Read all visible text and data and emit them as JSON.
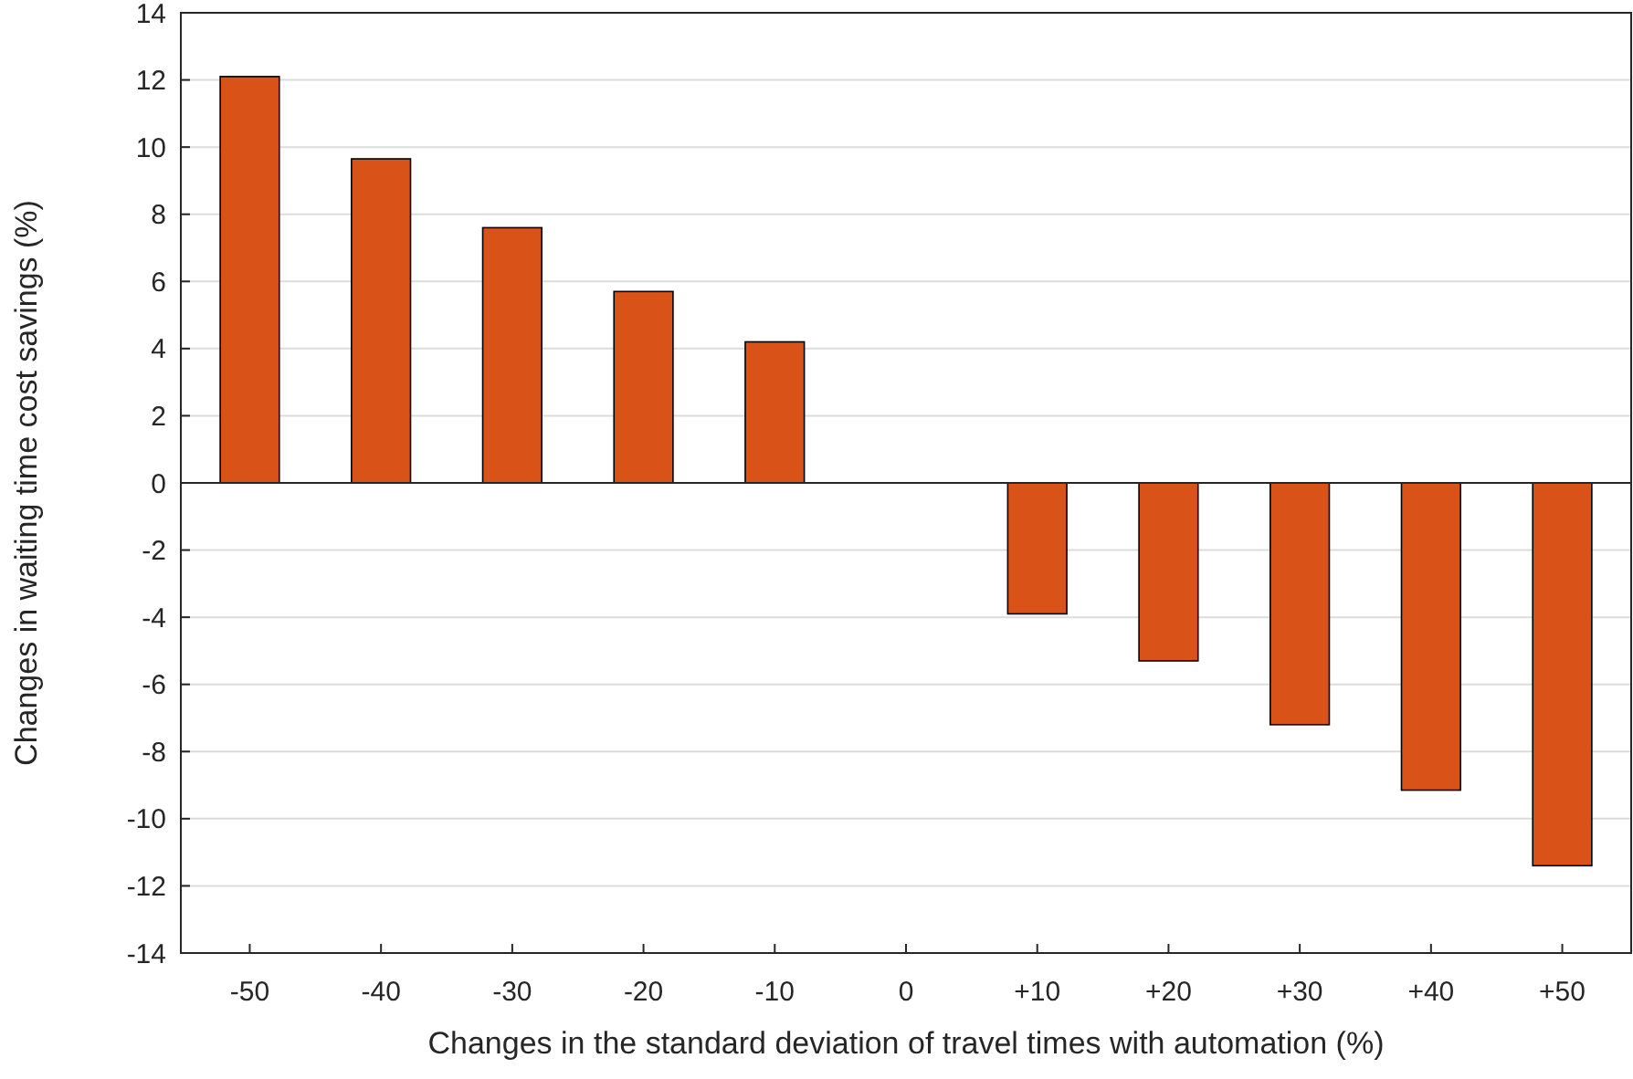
{
  "chart_data": {
    "type": "bar",
    "xlabel": "Changes in the standard deviation of travel times with automation (%)",
    "ylabel": "Changes in waiting time cost savings (%)",
    "categories": [
      "-50",
      "-40",
      "-30",
      "-20",
      "-10",
      "0",
      "+10",
      "+20",
      "+30",
      "+40",
      "+50"
    ],
    "series": [
      {
        "color": "#d95319",
        "values": [
          12.1,
          9.65,
          7.6,
          5.7,
          4.2,
          0,
          -3.9,
          -5.3,
          -7.2,
          -9.15,
          -11.4
        ]
      }
    ],
    "ylim": [
      -14,
      14
    ],
    "yticks": [
      -14,
      -12,
      -10,
      -8,
      -6,
      -4,
      -2,
      0,
      2,
      4,
      6,
      8,
      10,
      12,
      14
    ],
    "grid": "y"
  }
}
